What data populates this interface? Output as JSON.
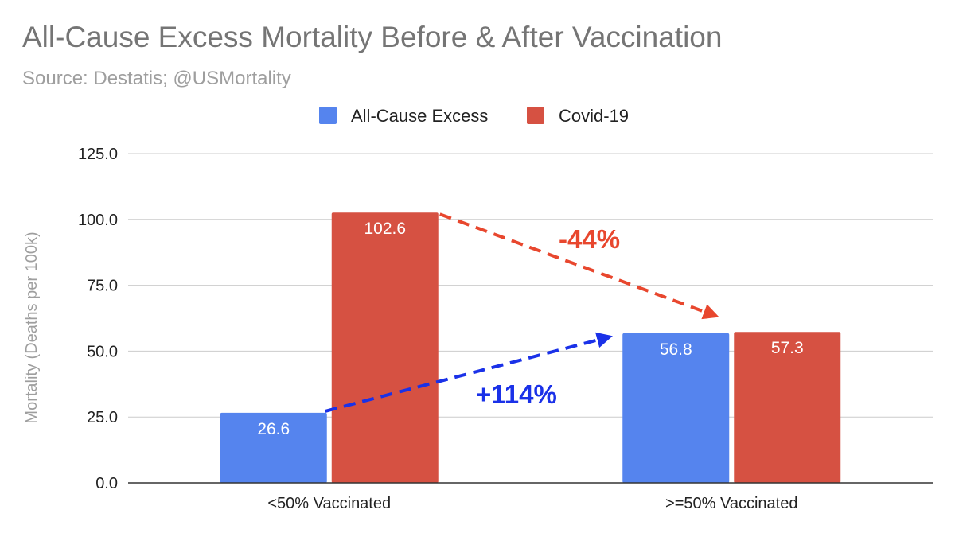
{
  "chart_data": {
    "type": "bar",
    "title": "All-Cause Excess Mortality Before & After Vaccination",
    "subtitle": "Source: Destatis; @USMortality",
    "categories": [
      "<50% Vaccinated",
      ">=50% Vaccinated"
    ],
    "series": [
      {
        "name": "All-Cause Excess",
        "color": "#5584EE",
        "values": [
          26.6,
          56.8
        ],
        "labels": [
          "26.6",
          "56.8"
        ]
      },
      {
        "name": "Covid-19",
        "color": "#D65142",
        "values": [
          102.6,
          57.3
        ],
        "labels": [
          "102.6",
          "57.3"
        ]
      }
    ],
    "ylabel": "Mortality (Deaths per 100k)",
    "xlabel": "",
    "ylim": [
      0,
      125
    ],
    "yticks": [
      "0.0",
      "25.0",
      "50.0",
      "75.0",
      "100.0",
      "125.0"
    ],
    "grid": true,
    "legend_position": "top-center",
    "annotations": [
      {
        "text": "+114%",
        "color": "#1A31E8",
        "series": "All-Cause Excess",
        "from_category": 0,
        "to_category": 1
      },
      {
        "text": "-44%",
        "color": "#E8472E",
        "series": "Covid-19",
        "from_category": 0,
        "to_category": 1
      }
    ]
  }
}
